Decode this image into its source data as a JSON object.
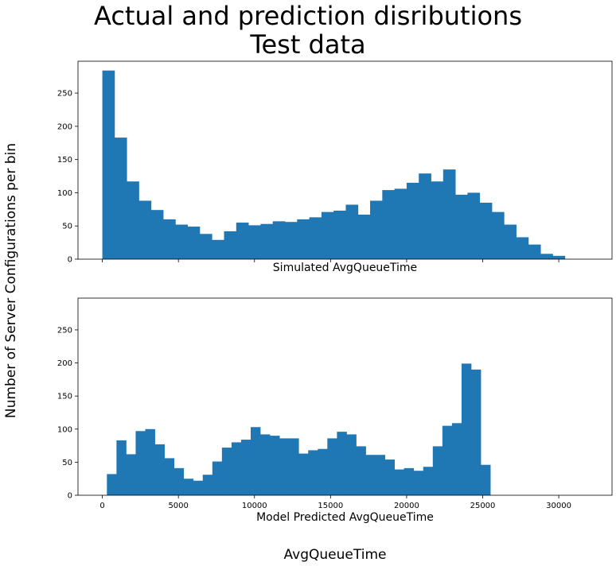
{
  "figure": {
    "title_line1": "Actual and prediction disributions",
    "title_line2": "Test data",
    "supxlabel": "AvgQueueTime",
    "supylabel": "Number of Server Configurations per bin",
    "bar_color": "#1f77b4"
  },
  "chart_data": [
    {
      "type": "bar",
      "xlabel": "Simulated AvgQueueTime",
      "ylabel": "",
      "xlim": [
        -1600,
        33500
      ],
      "ylim": [
        0,
        298
      ],
      "x_tick_labels_visible": false,
      "xticks": [
        0,
        5000,
        10000,
        15000,
        20000,
        25000,
        30000
      ],
      "yticks": [
        0,
        50,
        100,
        150,
        200,
        250
      ],
      "bins": {
        "start": 0,
        "width": 800,
        "values": [
          284,
          183,
          117,
          88,
          74,
          60,
          52,
          49,
          38,
          29,
          42,
          55,
          51,
          53,
          57,
          56,
          60,
          63,
          71,
          73,
          82,
          67,
          88,
          104,
          106,
          115,
          129,
          117,
          135,
          97,
          100,
          85,
          71,
          52,
          33,
          22,
          8,
          5
        ]
      }
    },
    {
      "type": "bar",
      "xlabel": "Model Predicted AvgQueueTime",
      "ylabel": "",
      "xlim": [
        -1600,
        33500
      ],
      "ylim": [
        0,
        298
      ],
      "x_tick_labels_visible": true,
      "xticks": [
        0,
        5000,
        10000,
        15000,
        20000,
        25000,
        30000
      ],
      "yticks": [
        0,
        50,
        100,
        150,
        200,
        250
      ],
      "bins": {
        "start": 300,
        "width": 630,
        "values": [
          32,
          83,
          62,
          97,
          100,
          77,
          56,
          41,
          25,
          22,
          31,
          51,
          72,
          80,
          84,
          103,
          92,
          90,
          86,
          86,
          63,
          68,
          70,
          86,
          96,
          92,
          74,
          61,
          61,
          54,
          39,
          41,
          37,
          43,
          74,
          105,
          109,
          199,
          190,
          46
        ]
      }
    }
  ]
}
